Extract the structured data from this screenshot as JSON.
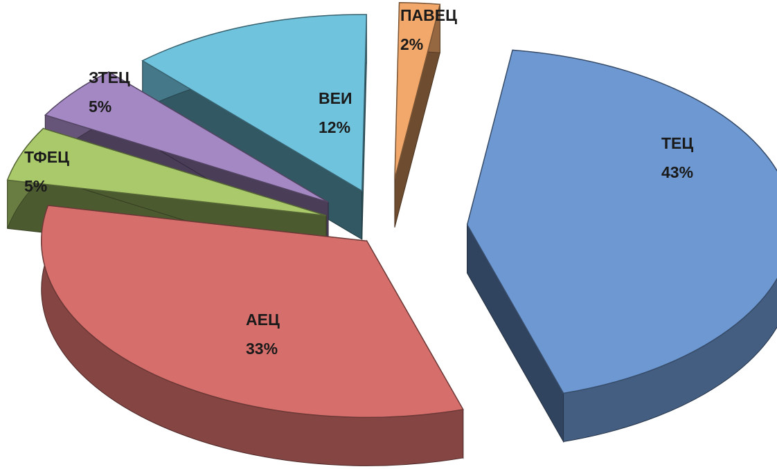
{
  "chart_data": {
    "type": "pie",
    "title": "",
    "slices": [
      {
        "name": "ТЕЦ",
        "value": 43,
        "label": "43%",
        "color": "#6d98d2"
      },
      {
        "name": "АЕЦ",
        "value": 33,
        "label": "33%",
        "color": "#d66f6c"
      },
      {
        "name": "ТФЕЦ",
        "value": 5,
        "label": "5%",
        "color": "#a9c96a"
      },
      {
        "name": "ЗТЕЦ",
        "value": 5,
        "label": "5%",
        "color": "#a488c3"
      },
      {
        "name": "ВЕИ",
        "value": 12,
        "label": "12%",
        "color": "#6fc3dd"
      },
      {
        "name": "ПАВЕЦ",
        "value": 2,
        "label": "2%",
        "color": "#f2a86a"
      }
    ],
    "style": "3d-exploded",
    "legend": "none"
  }
}
